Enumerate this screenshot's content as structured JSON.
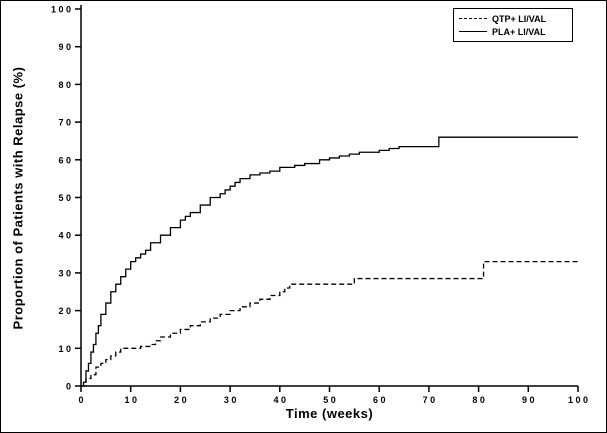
{
  "chart_data": {
    "type": "line",
    "subtype": "kaplan-meier-step",
    "title": "",
    "xlabel": "Time (weeks)",
    "ylabel": "Proportion of Patients with Relapse (%)",
    "xlim": [
      0,
      100
    ],
    "ylim": [
      0,
      100
    ],
    "x_ticks": [
      0,
      10,
      20,
      30,
      40,
      50,
      60,
      70,
      80,
      90,
      100
    ],
    "y_ticks": [
      0,
      10,
      20,
      30,
      40,
      50,
      60,
      70,
      80,
      90,
      100
    ],
    "grid": false,
    "legend_position": "top-right",
    "line_color": "#000000",
    "background_color": "#ffffff",
    "series": [
      {
        "name": "QTP+ LI/VAL",
        "style": "dashed",
        "points": [
          [
            0,
            0
          ],
          [
            1,
            2
          ],
          [
            2,
            3
          ],
          [
            3,
            5
          ],
          [
            4,
            6
          ],
          [
            5,
            7
          ],
          [
            6,
            8
          ],
          [
            7,
            9
          ],
          [
            8,
            10
          ],
          [
            12,
            10.5
          ],
          [
            14,
            11
          ],
          [
            15,
            12
          ],
          [
            16,
            13
          ],
          [
            18,
            14
          ],
          [
            20,
            15
          ],
          [
            22,
            16
          ],
          [
            24,
            17
          ],
          [
            26,
            18
          ],
          [
            28,
            19
          ],
          [
            30,
            20
          ],
          [
            32,
            21
          ],
          [
            34,
            22
          ],
          [
            36,
            23
          ],
          [
            38,
            24
          ],
          [
            40,
            25
          ],
          [
            41,
            26
          ],
          [
            42,
            27
          ],
          [
            54,
            27
          ],
          [
            55,
            28.5
          ],
          [
            80,
            28.5
          ],
          [
            81,
            33
          ],
          [
            100,
            33
          ]
        ]
      },
      {
        "name": "PLA+ LI/VAL",
        "style": "solid",
        "points": [
          [
            0,
            0
          ],
          [
            0.5,
            1
          ],
          [
            1,
            4
          ],
          [
            1.5,
            6
          ],
          [
            2,
            9
          ],
          [
            2.5,
            11
          ],
          [
            3,
            14
          ],
          [
            3.5,
            16
          ],
          [
            4,
            19
          ],
          [
            5,
            22
          ],
          [
            6,
            25
          ],
          [
            7,
            27
          ],
          [
            8,
            29
          ],
          [
            9,
            31
          ],
          [
            10,
            33
          ],
          [
            11,
            34
          ],
          [
            12,
            35
          ],
          [
            13,
            36
          ],
          [
            14,
            38
          ],
          [
            16,
            40
          ],
          [
            18,
            42
          ],
          [
            20,
            44
          ],
          [
            21,
            45
          ],
          [
            22,
            46
          ],
          [
            24,
            48
          ],
          [
            26,
            50
          ],
          [
            28,
            51
          ],
          [
            29,
            52
          ],
          [
            30,
            53
          ],
          [
            31,
            54
          ],
          [
            32,
            55
          ],
          [
            34,
            56
          ],
          [
            36,
            56.5
          ],
          [
            38,
            57
          ],
          [
            40,
            58
          ],
          [
            43,
            58.5
          ],
          [
            45,
            59
          ],
          [
            48,
            60
          ],
          [
            50,
            60.5
          ],
          [
            52,
            61
          ],
          [
            54,
            61.5
          ],
          [
            56,
            62
          ],
          [
            60,
            62.5
          ],
          [
            62,
            63
          ],
          [
            64,
            63.5
          ],
          [
            72,
            66
          ],
          [
            100,
            66
          ]
        ]
      }
    ]
  }
}
